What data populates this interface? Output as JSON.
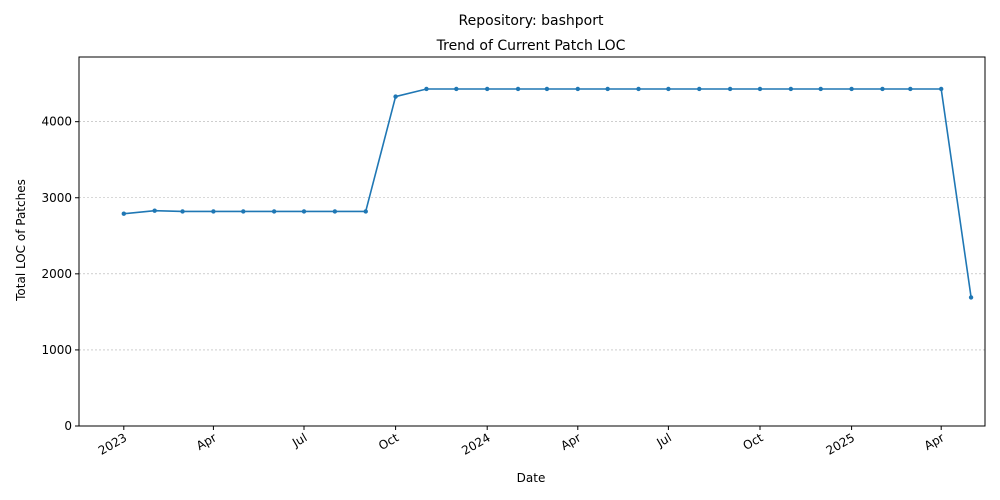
{
  "chart_data": {
    "type": "line",
    "title": "Repository: bashport",
    "subtitle": "Trend of Current Patch LOC",
    "xlabel": "Date",
    "ylabel": "Total LOC of Patches",
    "xlim": [
      "2022-11-17",
      "2025-05-15"
    ],
    "ylim": [
      0,
      4850
    ],
    "y_ticks": [
      0,
      1000,
      2000,
      3000,
      4000
    ],
    "x_ticks": [
      {
        "date": "2023-01-01",
        "label": "2023"
      },
      {
        "date": "2023-04-01",
        "label": "Apr"
      },
      {
        "date": "2023-07-01",
        "label": "Jul"
      },
      {
        "date": "2023-10-01",
        "label": "Oct"
      },
      {
        "date": "2024-01-01",
        "label": "2024"
      },
      {
        "date": "2024-04-01",
        "label": "Apr"
      },
      {
        "date": "2024-07-01",
        "label": "Jul"
      },
      {
        "date": "2024-10-01",
        "label": "Oct"
      },
      {
        "date": "2025-01-01",
        "label": "2025"
      },
      {
        "date": "2025-04-01",
        "label": "Apr"
      }
    ],
    "grid": "y-major-dashed",
    "line_color": "#1f77b4",
    "x": [
      "2023-01-01",
      "2023-02-01",
      "2023-03-01",
      "2023-04-01",
      "2023-05-01",
      "2023-06-01",
      "2023-07-01",
      "2023-08-01",
      "2023-09-01",
      "2023-10-01",
      "2023-11-01",
      "2023-12-01",
      "2024-01-01",
      "2024-02-01",
      "2024-03-01",
      "2024-04-01",
      "2024-05-01",
      "2024-06-01",
      "2024-07-01",
      "2024-08-01",
      "2024-09-01",
      "2024-10-01",
      "2024-11-01",
      "2024-12-01",
      "2025-01-01",
      "2025-02-01",
      "2025-03-01",
      "2025-04-01",
      "2025-05-01"
    ],
    "values": [
      2790,
      2830,
      2820,
      2820,
      2820,
      2820,
      2820,
      2820,
      2820,
      4330,
      4430,
      4430,
      4430,
      4430,
      4430,
      4430,
      4430,
      4430,
      4430,
      4430,
      4430,
      4430,
      4430,
      4430,
      4430,
      4430,
      4430,
      4430,
      1690
    ]
  }
}
